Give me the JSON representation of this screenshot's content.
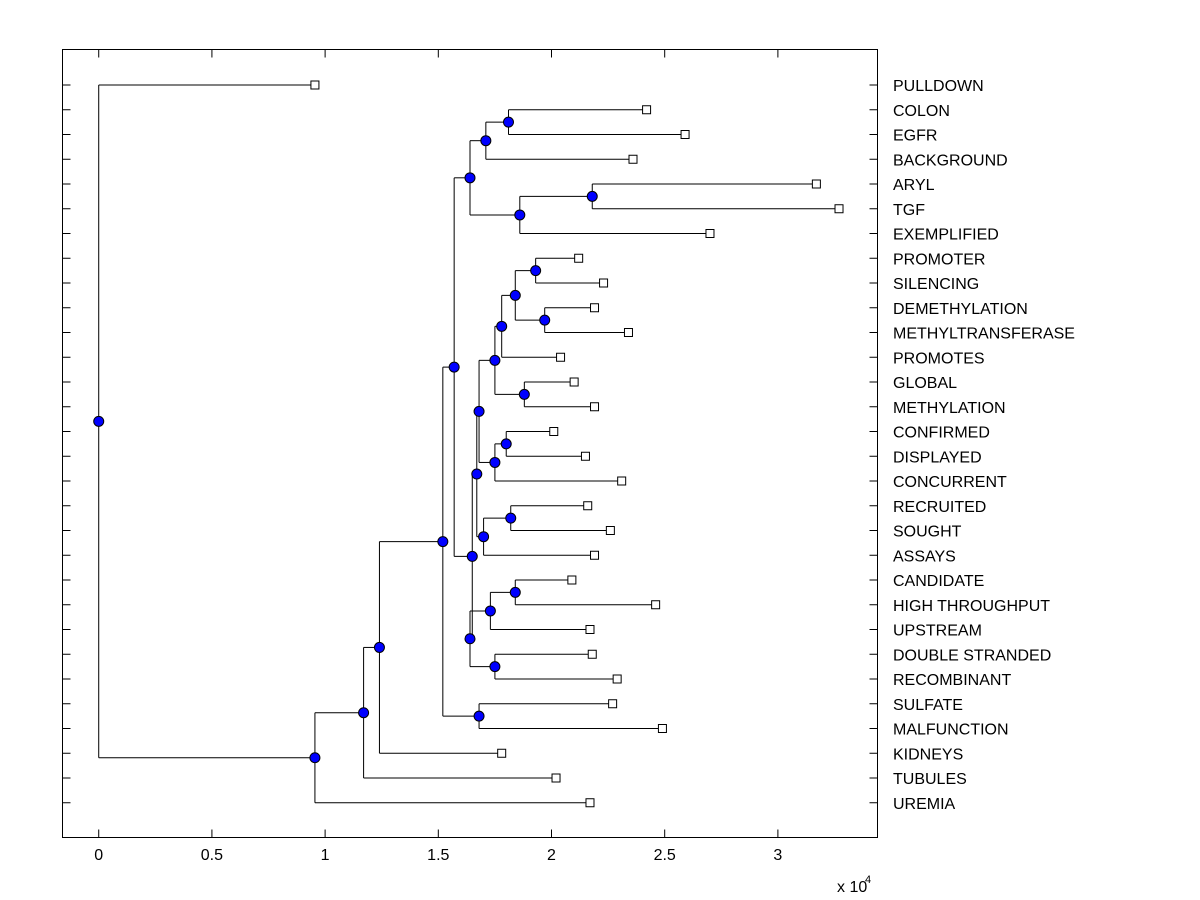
{
  "chart_data": {
    "type": "dendrogram",
    "orientation": "horizontal",
    "x_tick_labels": [
      "0",
      "0.5",
      "1",
      "1.5",
      "2",
      "2.5",
      "3"
    ],
    "x_ticks": [
      0,
      0.5,
      1,
      1.5,
      2,
      2.5,
      3
    ],
    "x_exponent_label": {
      "base": "x 10",
      "exponent": "4"
    },
    "x_multiplier": 10000,
    "xlim": [
      -0.16,
      3.44
    ],
    "leaf_labels": [
      "PULLDOWN",
      "COLON",
      "EGFR",
      "BACKGROUND",
      "ARYL",
      "TGF",
      "EXEMPLIFIED",
      "PROMOTER",
      "SILENCING",
      "DEMETHYLATION",
      "METHYLTRANSFERASE",
      "PROMOTES",
      "GLOBAL",
      "METHYLATION",
      "CONFIRMED",
      "DISPLAYED",
      "CONCURRENT",
      "RECRUITED",
      "SOUGHT",
      "ASSAYS",
      "CANDIDATE",
      "HIGH THROUGHPUT",
      "UPSTREAM",
      "DOUBLE STRANDED",
      "RECOMBINANT",
      "SULFATE",
      "MALFUNCTION",
      "KIDNEYS",
      "TUBULES",
      "UREMIA"
    ],
    "leaves": [
      {
        "label": "PULLDOWN",
        "value": 0.955
      },
      {
        "label": "COLON",
        "value": 2.42
      },
      {
        "label": "EGFR",
        "value": 2.59
      },
      {
        "label": "BACKGROUND",
        "value": 2.36
      },
      {
        "label": "ARYL",
        "value": 3.17
      },
      {
        "label": "TGF",
        "value": 3.27
      },
      {
        "label": "EXEMPLIFIED",
        "value": 2.7
      },
      {
        "label": "PROMOTER",
        "value": 2.12
      },
      {
        "label": "SILENCING",
        "value": 2.23
      },
      {
        "label": "DEMETHYLATION",
        "value": 2.19
      },
      {
        "label": "METHYLTRANSFERASE",
        "value": 2.34
      },
      {
        "label": "PROMOTES",
        "value": 2.04
      },
      {
        "label": "GLOBAL",
        "value": 2.1
      },
      {
        "label": "METHYLATION",
        "value": 2.19
      },
      {
        "label": "CONFIRMED",
        "value": 2.01
      },
      {
        "label": "DISPLAYED",
        "value": 2.15
      },
      {
        "label": "CONCURRENT",
        "value": 2.31
      },
      {
        "label": "RECRUITED",
        "value": 2.16
      },
      {
        "label": "SOUGHT",
        "value": 2.26
      },
      {
        "label": "ASSAYS",
        "value": 2.19
      },
      {
        "label": "CANDIDATE",
        "value": 2.09
      },
      {
        "label": "HIGH THROUGHPUT",
        "value": 2.46
      },
      {
        "label": "UPSTREAM",
        "value": 2.17
      },
      {
        "label": "DOUBLE STRANDED",
        "value": 2.18
      },
      {
        "label": "RECOMBINANT",
        "value": 2.29
      },
      {
        "label": "SULFATE",
        "value": 2.27
      },
      {
        "label": "MALFUNCTION",
        "value": 2.49
      },
      {
        "label": "KIDNEYS",
        "value": 1.78
      },
      {
        "label": "TUBULES",
        "value": 2.02
      },
      {
        "label": "UREMIA",
        "value": 2.17
      }
    ],
    "merges": [
      {
        "id": "n1",
        "value": 1.81,
        "children": [
          "L1",
          "L2"
        ]
      },
      {
        "id": "n2",
        "value": 1.71,
        "children": [
          "n1",
          "L3"
        ]
      },
      {
        "id": "n3",
        "value": 2.18,
        "children": [
          "L4",
          "L5"
        ]
      },
      {
        "id": "n4",
        "value": 1.86,
        "children": [
          "n3",
          "L6"
        ]
      },
      {
        "id": "n5",
        "value": 1.64,
        "children": [
          "n2",
          "n4"
        ]
      },
      {
        "id": "n6",
        "value": 1.93,
        "children": [
          "L7",
          "L8"
        ]
      },
      {
        "id": "n7",
        "value": 1.97,
        "children": [
          "L9",
          "L10"
        ]
      },
      {
        "id": "n8",
        "value": 1.84,
        "children": [
          "n6",
          "n7"
        ]
      },
      {
        "id": "n9",
        "value": 1.78,
        "children": [
          "n8",
          "L11"
        ]
      },
      {
        "id": "n10",
        "value": 1.88,
        "children": [
          "L12",
          "L13"
        ]
      },
      {
        "id": "n11",
        "value": 1.75,
        "children": [
          "n9",
          "n10"
        ]
      },
      {
        "id": "n12",
        "value": 1.8,
        "children": [
          "L14",
          "L15"
        ]
      },
      {
        "id": "n13",
        "value": 1.75,
        "children": [
          "n12",
          "L16"
        ]
      },
      {
        "id": "n14",
        "value": 1.68,
        "children": [
          "n11",
          "n13"
        ]
      },
      {
        "id": "n15",
        "value": 1.82,
        "children": [
          "L17",
          "L18"
        ]
      },
      {
        "id": "n16",
        "value": 1.7,
        "children": [
          "n15",
          "L19"
        ]
      },
      {
        "id": "n17",
        "value": 1.67,
        "children": [
          "n14",
          "n16"
        ]
      },
      {
        "id": "n18",
        "value": 1.84,
        "children": [
          "L20",
          "L21"
        ]
      },
      {
        "id": "n19",
        "value": 1.73,
        "children": [
          "n18",
          "L22"
        ]
      },
      {
        "id": "n20",
        "value": 1.75,
        "children": [
          "L23",
          "L24"
        ]
      },
      {
        "id": "n21",
        "value": 1.64,
        "children": [
          "n19",
          "n20"
        ]
      },
      {
        "id": "n22",
        "value": 1.65,
        "children": [
          "n17",
          "n21"
        ]
      },
      {
        "id": "n23",
        "value": 1.57,
        "children": [
          "n5",
          "n22"
        ]
      },
      {
        "id": "n24",
        "value": 1.68,
        "children": [
          "L25",
          "L26"
        ]
      },
      {
        "id": "n25",
        "value": 1.52,
        "children": [
          "n23",
          "n24"
        ]
      },
      {
        "id": "n26",
        "value": 1.24,
        "children": [
          "n25",
          "L27"
        ]
      },
      {
        "id": "n27",
        "value": 1.17,
        "children": [
          "n26",
          "L28"
        ]
      },
      {
        "id": "n28",
        "value": 0.955,
        "children": [
          "n27",
          "L29"
        ]
      },
      {
        "id": "n29",
        "value": 0.0,
        "children": [
          "L0",
          "n28"
        ]
      }
    ],
    "colors": {
      "node": "#0000ff",
      "leaf_marker": "#ffffff",
      "line": "#000000"
    }
  }
}
